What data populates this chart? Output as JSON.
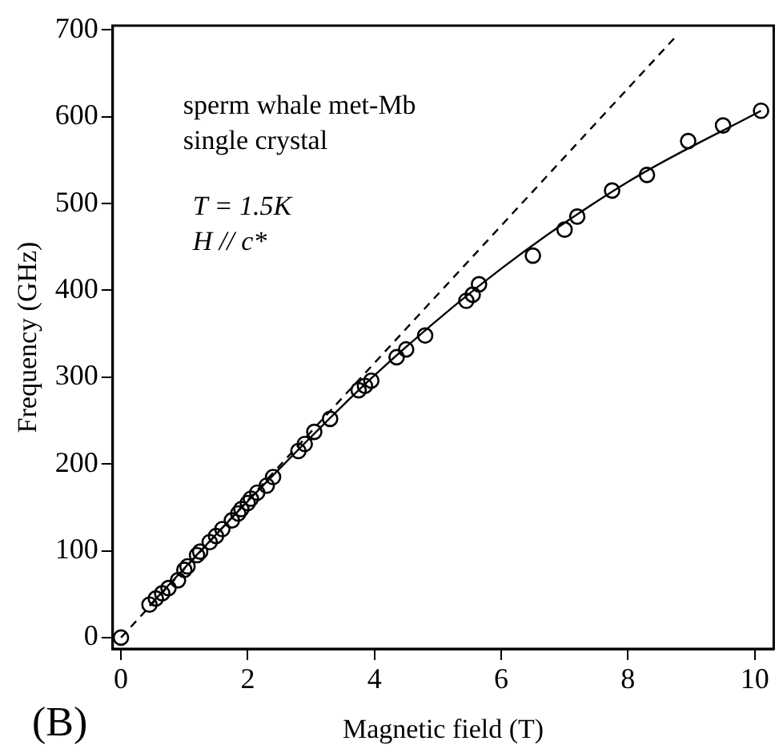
{
  "chart_data": {
    "type": "scatter",
    "xlabel": "Magnetic field (T)",
    "ylabel": "Frequency (GHz)",
    "xlim": [
      -0.13,
      10.3
    ],
    "ylim": [
      -13,
      705
    ],
    "xticks": [
      0,
      2,
      4,
      6,
      8,
      10
    ],
    "yticks": [
      0,
      100,
      200,
      300,
      400,
      500,
      600,
      700
    ],
    "grid": false,
    "legend": false,
    "annotations": [
      "sperm whale met-Mb",
      "single crystal",
      "T = 1.5K",
      "H // c*",
      "(B)"
    ],
    "series": [
      {
        "type": "scatter",
        "marker": "circle",
        "color": "#000000",
        "x": [
          0,
          0.45,
          0.55,
          0.65,
          0.75,
          0.9,
          1.0,
          1.05,
          1.2,
          1.25,
          1.4,
          1.5,
          1.6,
          1.75,
          1.85,
          1.9,
          2.0,
          2.05,
          2.15,
          2.3,
          2.4,
          2.8,
          2.9,
          3.05,
          3.3,
          3.75,
          3.85,
          3.95,
          4.35,
          4.5,
          4.8,
          5.45,
          5.55,
          5.65,
          6.5,
          7.0,
          7.2,
          7.75,
          8.3,
          8.95,
          9.5,
          10.1
        ],
        "values": [
          0,
          38,
          45,
          51,
          57,
          66,
          78,
          82,
          95,
          99,
          110,
          117,
          125,
          135,
          143,
          148,
          155,
          160,
          167,
          175,
          185,
          215,
          223,
          237,
          252,
          285,
          290,
          296,
          323,
          332,
          348,
          388,
          395,
          407,
          440,
          470,
          485,
          515,
          533,
          572,
          590,
          607
        ]
      },
      {
        "type": "line",
        "marker": "none",
        "line_style": "solid",
        "color": "#000000",
        "x": [
          0.45,
          2,
          4,
          6,
          8,
          10.1
        ],
        "values": [
          37,
          157,
          302,
          425,
          525,
          607
        ]
      },
      {
        "type": "line",
        "marker": "none",
        "line_style": "dashed",
        "color": "#000000",
        "x": [
          0,
          8.75
        ],
        "values": [
          0,
          692
        ]
      }
    ]
  }
}
